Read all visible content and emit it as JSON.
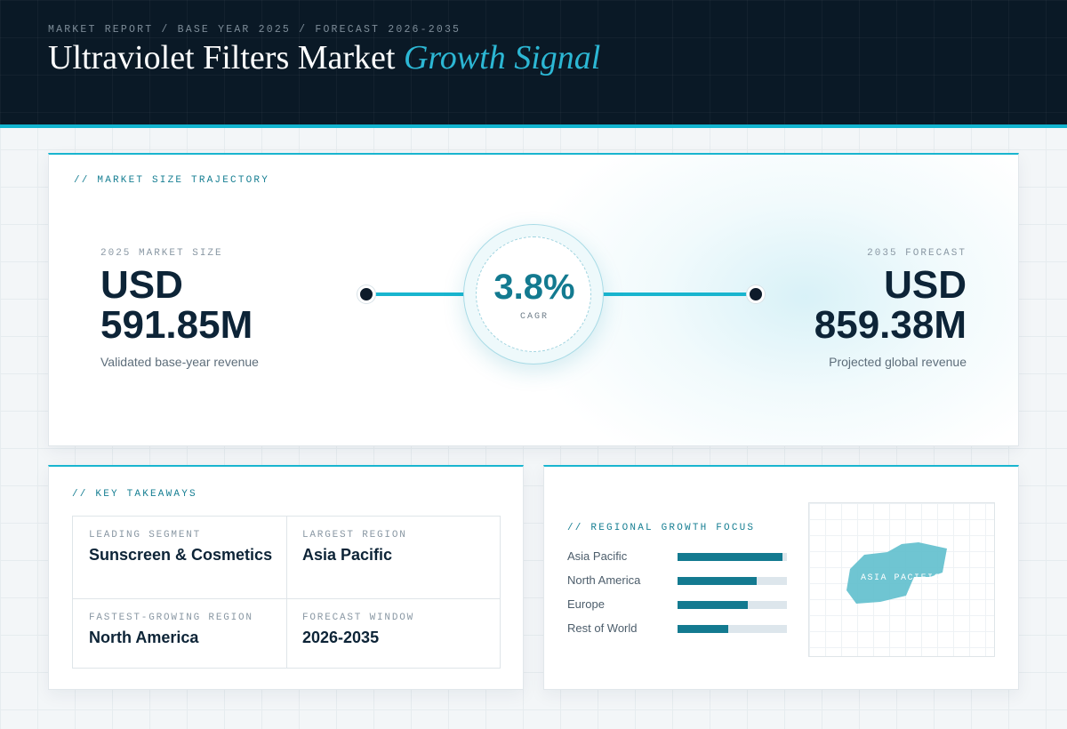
{
  "header": {
    "eyebrow": "MARKET REPORT / BASE YEAR 2025 / FORECAST 2026-2035",
    "title_main": "Ultraviolet Filters Market",
    "title_accent": "Growth Signal"
  },
  "trajectory": {
    "label": "// MARKET SIZE TRAJECTORY",
    "base": {
      "caption": "2025 MARKET SIZE",
      "currency": "USD",
      "value": "591.85M",
      "note": "Validated base-year revenue"
    },
    "forecast": {
      "caption": "2035 FORECAST",
      "currency": "USD",
      "value": "859.38M",
      "note": "Projected global revenue"
    },
    "cagr": {
      "value": "3.8%",
      "label": "CAGR"
    }
  },
  "takeaways": {
    "label": "// KEY TAKEAWAYS",
    "items": [
      {
        "key": "LEADING SEGMENT",
        "value": "Sunscreen & Cosmetics"
      },
      {
        "key": "LARGEST REGION",
        "value": "Asia Pacific"
      },
      {
        "key": "FASTEST-GROWING REGION",
        "value": "North America"
      },
      {
        "key": "FORECAST WINDOW",
        "value": "2026-2035"
      }
    ]
  },
  "regional": {
    "label": "// REGIONAL GROWTH FOCUS",
    "bars": [
      {
        "name": "Asia Pacific",
        "share": 0.96
      },
      {
        "name": "North America",
        "share": 0.72
      },
      {
        "name": "Europe",
        "share": 0.64
      },
      {
        "name": "Rest of World",
        "share": 0.46
      }
    ],
    "map_label": "ASIA PACIFIC",
    "accent_color": "#137a90",
    "map_color": "#5fbfcd"
  }
}
